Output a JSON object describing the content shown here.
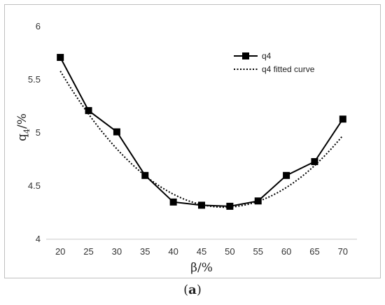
{
  "chart_data": {
    "type": "line",
    "title": "",
    "xlabel": "β/%",
    "ylabel_main": "q",
    "ylabel_sub": "4",
    "ylabel_suffix": "/%",
    "x": [
      20,
      25,
      30,
      35,
      40,
      45,
      50,
      55,
      60,
      65,
      70
    ],
    "xlim": [
      17.5,
      72.5
    ],
    "ylim": [
      4,
      6
    ],
    "yticks": [
      4,
      4.5,
      5,
      5.5,
      6
    ],
    "ytick_labels": [
      "4",
      "4.5",
      "5",
      "5.5",
      "6"
    ],
    "xtick_labels": [
      "20",
      "25",
      "30",
      "35",
      "40",
      "45",
      "50",
      "55",
      "60",
      "65",
      "70"
    ],
    "grid": false,
    "legend_position": "top-right",
    "series": [
      {
        "name": "q4",
        "style": "solid-square-markers",
        "color": "#000000",
        "values": [
          5.71,
          5.21,
          5.01,
          4.6,
          4.35,
          4.32,
          4.31,
          4.36,
          4.6,
          4.73,
          5.13
        ]
      },
      {
        "name": "q4 fitted curve",
        "style": "dotted",
        "color": "#000000",
        "coefficients": [
          0.001525,
          -0.14935,
          7.9577
        ]
      }
    ]
  },
  "caption": {
    "open": "(",
    "letter": "a",
    "close": ")"
  }
}
